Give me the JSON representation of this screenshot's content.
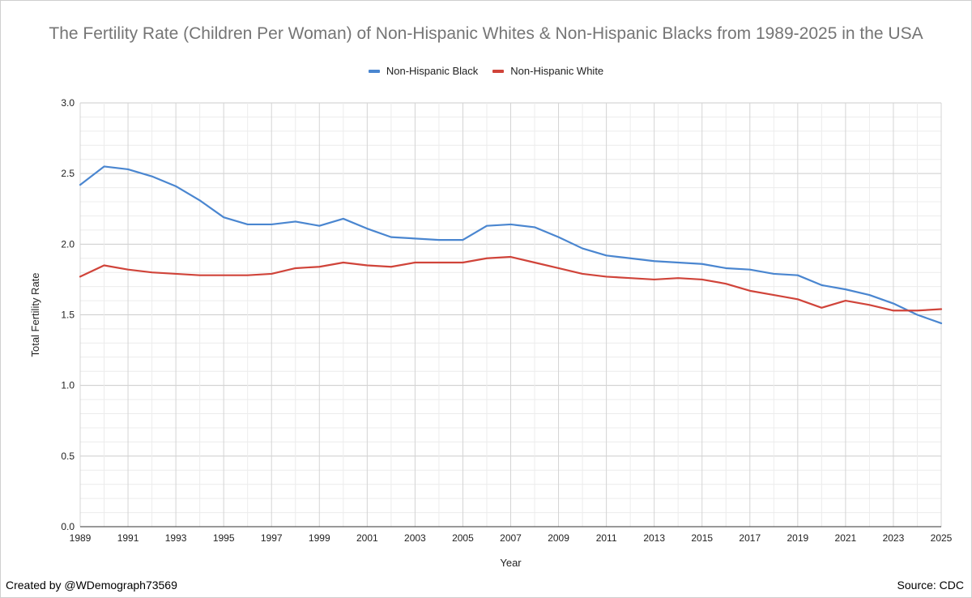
{
  "chart_data": {
    "type": "line",
    "title": "The Fertility Rate (Children Per Woman) of Non-Hispanic Whites & Non-Hispanic Blacks from 1989-2025 in the USA",
    "xlabel": "Year",
    "ylabel": "Total Fertility Rate",
    "ylim": [
      0,
      3
    ],
    "yticks": [
      "0.0",
      "0.5",
      "1.0",
      "1.5",
      "2.0",
      "2.5",
      "3.0"
    ],
    "xticks": [
      "1989",
      "1991",
      "1993",
      "1995",
      "1997",
      "1999",
      "2001",
      "2003",
      "2005",
      "2007",
      "2009",
      "2011",
      "2013",
      "2015",
      "2017",
      "2019",
      "2021",
      "2023",
      "2025"
    ],
    "x": [
      1989,
      1990,
      1991,
      1992,
      1993,
      1994,
      1995,
      1996,
      1997,
      1998,
      1999,
      2000,
      2001,
      2002,
      2003,
      2004,
      2005,
      2006,
      2007,
      2008,
      2009,
      2010,
      2011,
      2012,
      2013,
      2014,
      2015,
      2016,
      2017,
      2018,
      2019,
      2020,
      2021,
      2022,
      2023,
      2024,
      2025
    ],
    "series": [
      {
        "name": "Non-Hispanic Black",
        "color": "#4a86d0",
        "values": [
          2.42,
          2.55,
          2.53,
          2.48,
          2.41,
          2.31,
          2.19,
          2.14,
          2.14,
          2.16,
          2.13,
          2.18,
          2.11,
          2.05,
          2.04,
          2.03,
          2.03,
          2.13,
          2.14,
          2.12,
          2.05,
          1.97,
          1.92,
          1.9,
          1.88,
          1.87,
          1.86,
          1.83,
          1.82,
          1.79,
          1.78,
          1.71,
          1.68,
          1.64,
          1.58,
          1.5,
          1.44
        ]
      },
      {
        "name": "Non-Hispanic White",
        "color": "#d0443a",
        "values": [
          1.77,
          1.85,
          1.82,
          1.8,
          1.79,
          1.78,
          1.78,
          1.78,
          1.79,
          1.83,
          1.84,
          1.87,
          1.85,
          1.84,
          1.87,
          1.87,
          1.87,
          1.9,
          1.91,
          1.87,
          1.83,
          1.79,
          1.77,
          1.76,
          1.75,
          1.76,
          1.75,
          1.72,
          1.67,
          1.64,
          1.61,
          1.55,
          1.6,
          1.57,
          1.53,
          1.53,
          1.54
        ]
      }
    ],
    "legend_position": "top",
    "grid": true
  },
  "footer": {
    "credit": "Created by @WDemograph73569",
    "source": "Source: CDC"
  }
}
